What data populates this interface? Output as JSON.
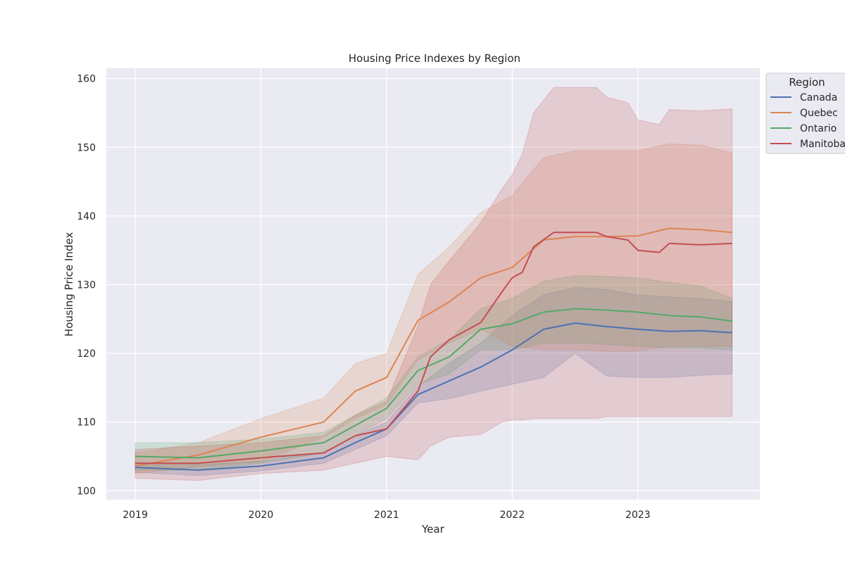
{
  "chart_data": {
    "type": "line",
    "title": "Housing Price Indexes by Region",
    "xlabel": "Year",
    "ylabel": "Housing Price Index",
    "xlim": [
      2018.77,
      2023.97
    ],
    "ylim": [
      98.7,
      161.5
    ],
    "x_ticks": [
      2019,
      2020,
      2021,
      2022,
      2023
    ],
    "x_tick_labels": [
      "2019",
      "2020",
      "2021",
      "2022",
      "2023"
    ],
    "y_ticks": [
      100,
      110,
      120,
      130,
      140,
      150,
      160
    ],
    "y_tick_labels": [
      "100",
      "110",
      "120",
      "130",
      "140",
      "150",
      "160"
    ],
    "grid": true,
    "legend": {
      "title": "Region",
      "placement": "upper right, outside plot"
    },
    "series": [
      {
        "name": "Canada",
        "color": "#4c72b0",
        "points": [
          [
            2019.0,
            103.4
          ],
          [
            2019.5,
            103.0
          ],
          [
            2020.0,
            103.6
          ],
          [
            2020.5,
            104.8
          ],
          [
            2020.75,
            107.0
          ],
          [
            2021.0,
            109.0
          ],
          [
            2021.25,
            114.0
          ],
          [
            2021.5,
            116.0
          ],
          [
            2021.75,
            118.0
          ],
          [
            2022.0,
            120.5
          ],
          [
            2022.25,
            123.5
          ],
          [
            2022.5,
            124.4
          ],
          [
            2022.75,
            123.9
          ],
          [
            2023.0,
            123.5
          ],
          [
            2023.25,
            123.2
          ],
          [
            2023.5,
            123.3
          ],
          [
            2023.75,
            123.0
          ]
        ],
        "ci": [
          [
            2019.0,
            102.7,
            104.1
          ],
          [
            2019.5,
            102.2,
            103.8
          ],
          [
            2020.0,
            102.9,
            104.3
          ],
          [
            2020.5,
            104.0,
            105.6
          ],
          [
            2020.75,
            106.0,
            108.0
          ],
          [
            2021.0,
            108.0,
            110.0
          ],
          [
            2021.25,
            112.8,
            115.2
          ],
          [
            2021.5,
            113.4,
            118.6
          ],
          [
            2021.75,
            114.5,
            121.5
          ],
          [
            2022.0,
            115.5,
            125.5
          ],
          [
            2022.25,
            116.5,
            128.5
          ],
          [
            2022.5,
            120.0,
            129.6
          ],
          [
            2022.75,
            116.7,
            129.3
          ],
          [
            2023.0,
            116.5,
            128.5
          ],
          [
            2023.25,
            116.5,
            128.2
          ],
          [
            2023.5,
            116.8,
            128.0
          ],
          [
            2023.75,
            117.0,
            127.5
          ]
        ]
      },
      {
        "name": "Quebec",
        "color": "#dd8452",
        "points": [
          [
            2019.0,
            103.6
          ],
          [
            2019.5,
            105.2
          ],
          [
            2020.0,
            107.8
          ],
          [
            2020.5,
            110.0
          ],
          [
            2020.75,
            114.5
          ],
          [
            2021.0,
            116.5
          ],
          [
            2021.25,
            124.8
          ],
          [
            2021.5,
            127.5
          ],
          [
            2021.75,
            131.0
          ],
          [
            2022.0,
            132.5
          ],
          [
            2022.25,
            136.5
          ],
          [
            2022.5,
            137.0
          ],
          [
            2022.75,
            137.0
          ],
          [
            2023.0,
            137.1
          ],
          [
            2023.25,
            138.2
          ],
          [
            2023.5,
            138.0
          ],
          [
            2023.75,
            137.6
          ]
        ],
        "ci": [
          [
            2019.0,
            102.5,
            105.5
          ],
          [
            2019.5,
            103.5,
            107.0
          ],
          [
            2020.0,
            104.2,
            110.5
          ],
          [
            2020.5,
            107.8,
            113.5
          ],
          [
            2020.75,
            110.5,
            118.5
          ],
          [
            2021.0,
            112.5,
            120.0
          ],
          [
            2021.25,
            119.0,
            131.5
          ],
          [
            2021.5,
            121.5,
            135.5
          ],
          [
            2021.75,
            123.5,
            140.5
          ],
          [
            2022.0,
            121.0,
            143.0
          ],
          [
            2022.25,
            120.5,
            148.5
          ],
          [
            2022.5,
            120.5,
            149.5
          ],
          [
            2022.75,
            120.3,
            149.5
          ],
          [
            2023.0,
            120.3,
            149.5
          ],
          [
            2023.25,
            121.0,
            150.5
          ],
          [
            2023.5,
            121.0,
            150.3
          ],
          [
            2023.75,
            121.0,
            149.2
          ]
        ]
      },
      {
        "name": "Ontario",
        "color": "#55a868",
        "points": [
          [
            2019.0,
            105.0
          ],
          [
            2019.5,
            104.8
          ],
          [
            2020.0,
            105.8
          ],
          [
            2020.5,
            107.0
          ],
          [
            2020.75,
            109.5
          ],
          [
            2021.0,
            112.0
          ],
          [
            2021.25,
            117.5
          ],
          [
            2021.5,
            119.5
          ],
          [
            2021.75,
            123.5
          ],
          [
            2022.0,
            124.3
          ],
          [
            2022.25,
            126.0
          ],
          [
            2022.5,
            126.5
          ],
          [
            2022.75,
            126.3
          ],
          [
            2023.0,
            126.0
          ],
          [
            2023.25,
            125.5
          ],
          [
            2023.5,
            125.3
          ],
          [
            2023.75,
            124.7
          ]
        ],
        "ci": [
          [
            2019.0,
            103.0,
            107.0
          ],
          [
            2019.5,
            103.0,
            107.0
          ],
          [
            2020.0,
            104.0,
            107.5
          ],
          [
            2020.5,
            105.5,
            108.5
          ],
          [
            2020.75,
            108.0,
            111.0
          ],
          [
            2021.0,
            110.5,
            113.5
          ],
          [
            2021.25,
            115.5,
            119.5
          ],
          [
            2021.5,
            117.0,
            122.0
          ],
          [
            2021.75,
            120.5,
            126.5
          ],
          [
            2022.0,
            120.5,
            128.0
          ],
          [
            2022.25,
            121.5,
            130.5
          ],
          [
            2022.5,
            121.5,
            131.3
          ],
          [
            2022.75,
            121.3,
            131.2
          ],
          [
            2023.0,
            121.0,
            131.0
          ],
          [
            2023.25,
            120.8,
            130.3
          ],
          [
            2023.5,
            120.8,
            129.8
          ],
          [
            2023.75,
            120.5,
            128.0
          ]
        ]
      },
      {
        "name": "Manitoba",
        "color": "#c44e52",
        "points": [
          [
            2019.0,
            104.0
          ],
          [
            2019.5,
            104.0
          ],
          [
            2020.0,
            104.8
          ],
          [
            2020.5,
            105.5
          ],
          [
            2020.75,
            108.0
          ],
          [
            2021.0,
            109.0
          ],
          [
            2021.25,
            114.5
          ],
          [
            2021.35,
            119.5
          ],
          [
            2021.5,
            122.0
          ],
          [
            2021.75,
            124.5
          ],
          [
            2021.92,
            129.0
          ],
          [
            2022.0,
            131.0
          ],
          [
            2022.08,
            131.8
          ],
          [
            2022.17,
            135.5
          ],
          [
            2022.33,
            137.6
          ],
          [
            2022.67,
            137.6
          ],
          [
            2022.75,
            137.0
          ],
          [
            2022.92,
            136.5
          ],
          [
            2023.0,
            135.0
          ],
          [
            2023.17,
            134.7
          ],
          [
            2023.25,
            136.0
          ],
          [
            2023.5,
            135.8
          ],
          [
            2023.75,
            136.0
          ]
        ],
        "ci": [
          [
            2019.0,
            101.8,
            106.0
          ],
          [
            2019.5,
            101.5,
            106.5
          ],
          [
            2020.0,
            102.5,
            107.0
          ],
          [
            2020.5,
            103.0,
            108.0
          ],
          [
            2020.75,
            104.0,
            111.0
          ],
          [
            2021.0,
            105.0,
            113.0
          ],
          [
            2021.25,
            104.5,
            124.0
          ],
          [
            2021.35,
            106.5,
            130.0
          ],
          [
            2021.5,
            107.8,
            133.5
          ],
          [
            2021.75,
            108.2,
            139.0
          ],
          [
            2021.92,
            110.0,
            144.0
          ],
          [
            2022.0,
            110.3,
            146.0
          ],
          [
            2022.08,
            110.3,
            149.0
          ],
          [
            2022.17,
            110.5,
            155.0
          ],
          [
            2022.33,
            110.5,
            158.7
          ],
          [
            2022.67,
            110.5,
            158.7
          ],
          [
            2022.75,
            110.8,
            157.3
          ],
          [
            2022.92,
            110.8,
            156.5
          ],
          [
            2023.0,
            110.8,
            154.0
          ],
          [
            2023.17,
            110.8,
            153.3
          ],
          [
            2023.25,
            110.8,
            155.5
          ],
          [
            2023.5,
            110.8,
            155.3
          ],
          [
            2023.75,
            110.8,
            155.6
          ]
        ]
      }
    ]
  }
}
